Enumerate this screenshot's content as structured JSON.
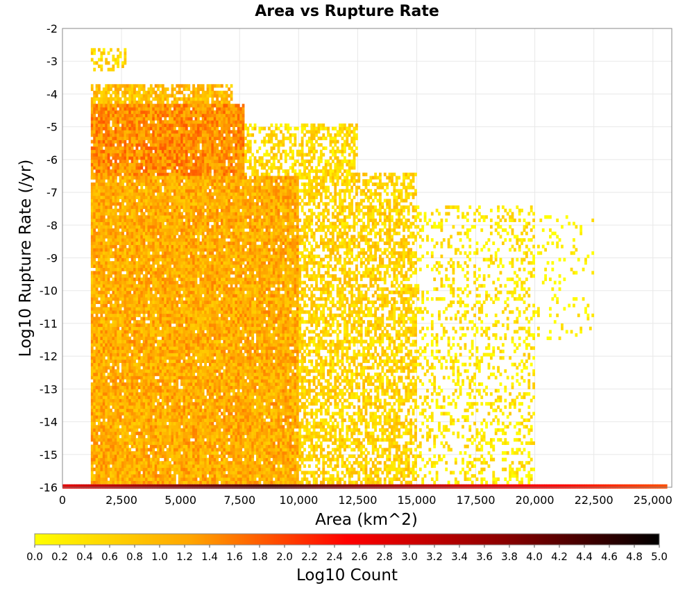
{
  "chart_data": {
    "type": "heatmap",
    "title": "Area vs Rupture Rate",
    "xlabel": "Area (km^2)",
    "ylabel": "Log10 Rupture Rate (/yr)",
    "xlim": [
      0,
      25800
    ],
    "ylim": [
      -16,
      -2
    ],
    "x_ticks": [
      "0",
      "2,500",
      "5,000",
      "7,500",
      "10,000",
      "12,500",
      "15,000",
      "17,500",
      "20,000",
      "22,500",
      "25,000"
    ],
    "x_tick_values": [
      0,
      2500,
      5000,
      7500,
      10000,
      12500,
      15000,
      17500,
      20000,
      22500,
      25000
    ],
    "y_ticks": [
      "-2",
      "-3",
      "-4",
      "-5",
      "-6",
      "-7",
      "-8",
      "-9",
      "-10",
      "-11",
      "-12",
      "-13",
      "-14",
      "-15",
      "-16"
    ],
    "y_tick_values": [
      -2,
      -3,
      -4,
      -5,
      -6,
      -7,
      -8,
      -9,
      -10,
      -11,
      -12,
      -13,
      -14,
      -15,
      -16
    ],
    "grid": true,
    "colorbar": {
      "label": "Log10 Count",
      "range": [
        0,
        5
      ],
      "ticks": [
        "0.0",
        "0.2",
        "0.4",
        "0.6",
        "0.8",
        "1.0",
        "1.2",
        "1.4",
        "1.6",
        "1.8",
        "2.0",
        "2.2",
        "2.4",
        "2.6",
        "2.8",
        "3.0",
        "3.2",
        "3.4",
        "3.6",
        "3.8",
        "4.0",
        "4.2",
        "4.4",
        "4.6",
        "4.8",
        "5.0"
      ],
      "colors": [
        "#ffff00",
        "#ffa500",
        "#ff0000",
        "#8b0000",
        "#000000"
      ]
    },
    "bin_size": {
      "x": 100,
      "y": 0.1
    },
    "density_regions": [
      {
        "x": [
          1200,
          2700
        ],
        "y": [
          -3.3,
          -2.6
        ],
        "log10_count": 0.5,
        "fill": 0.4
      },
      {
        "x": [
          1200,
          7200
        ],
        "y": [
          -4.4,
          -3.8
        ],
        "log10_count": 0.9,
        "fill": 0.75
      },
      {
        "x": [
          1200,
          7700
        ],
        "y": [
          -6.6,
          -4.4
        ],
        "log10_count": 1.4,
        "fill": 0.95
      },
      {
        "x": [
          7700,
          12500
        ],
        "y": [
          -6.6,
          -5.0
        ],
        "log10_count": 0.5,
        "fill": 0.55
      },
      {
        "x": [
          1200,
          10000
        ],
        "y": [
          -15.9,
          -6.6
        ],
        "log10_count": 1.1,
        "fill": 0.95
      },
      {
        "x": [
          10000,
          15000
        ],
        "y": [
          -15.9,
          -6.5
        ],
        "log10_count": 0.6,
        "fill": 0.6
      },
      {
        "x": [
          15000,
          20000
        ],
        "y": [
          -15.9,
          -7.5
        ],
        "log10_count": 0.3,
        "fill": 0.25
      },
      {
        "x": [
          20000,
          22500
        ],
        "y": [
          -11.5,
          -7.8
        ],
        "log10_count": 0.1,
        "fill": 0.1
      }
    ],
    "floor_row": {
      "y": -16,
      "x": [
        0,
        25600
      ],
      "log10_count_at_x": [
        [
          0,
          2.8
        ],
        [
          5000,
          3.8
        ],
        [
          9000,
          4.3
        ],
        [
          12500,
          3.6
        ],
        [
          17000,
          2.9
        ],
        [
          20500,
          2.5
        ],
        [
          25600,
          1.9
        ]
      ]
    }
  }
}
